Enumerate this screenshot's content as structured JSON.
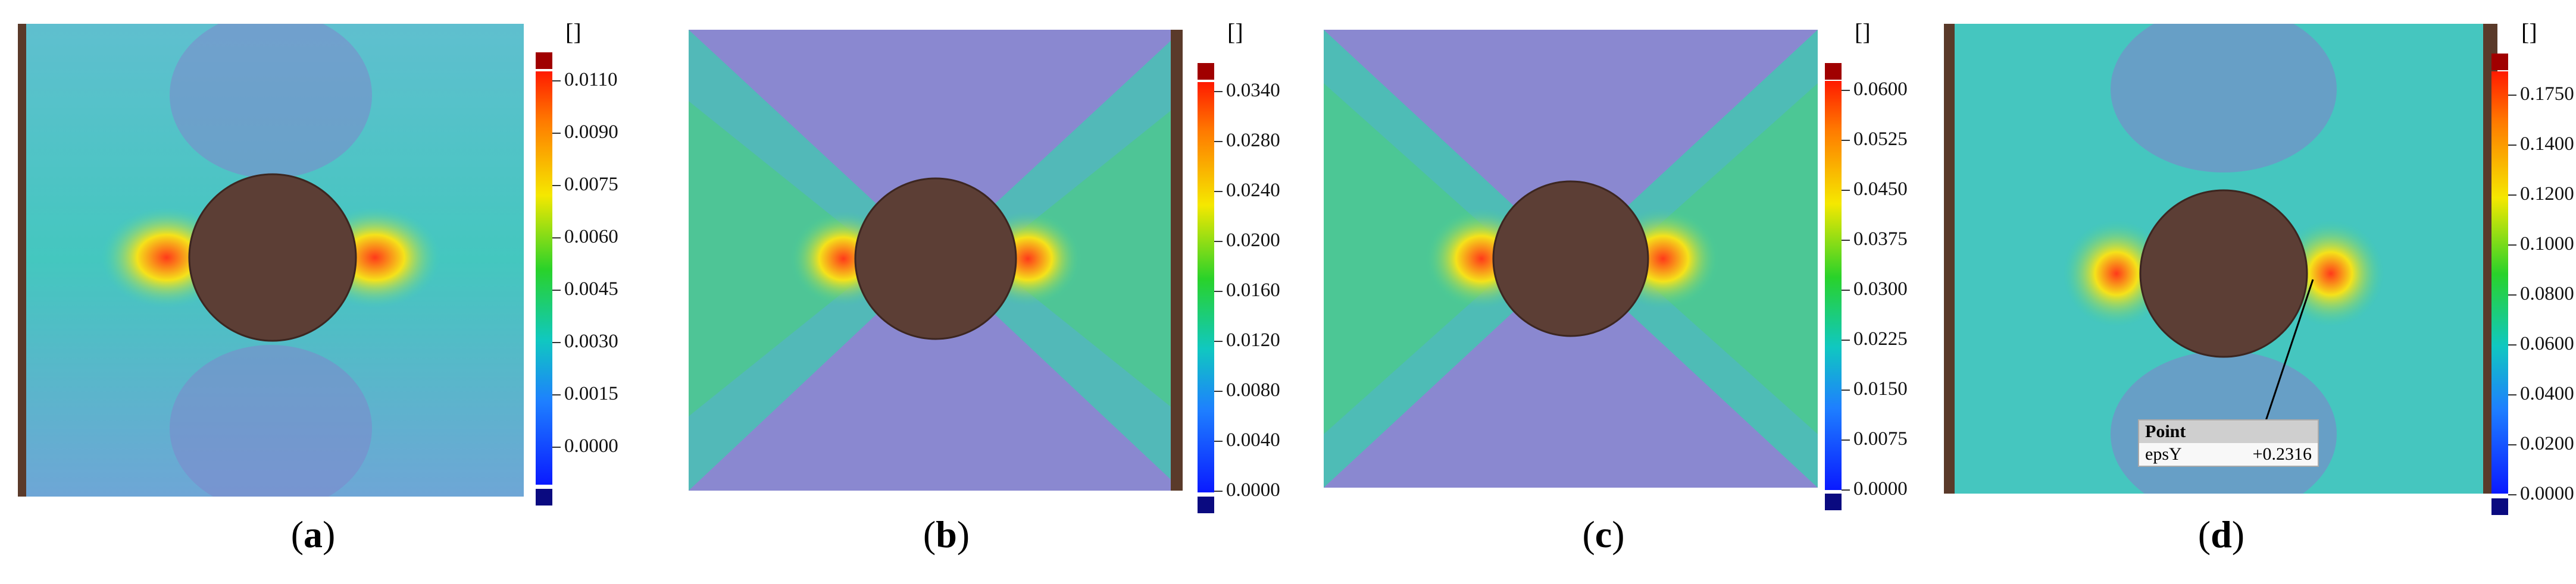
{
  "panels": [
    {
      "caption": "a",
      "unit": "[]",
      "ticks": [
        "0.0110",
        "0.0090",
        "0.0075",
        "0.0060",
        "0.0045",
        "0.0030",
        "0.0015",
        "0.0000"
      ]
    },
    {
      "caption": "b",
      "unit": "[]",
      "ticks": [
        "0.0340",
        "0.0280",
        "0.0240",
        "0.0200",
        "0.0160",
        "0.0120",
        "0.0080",
        "0.0040",
        "0.0000"
      ]
    },
    {
      "caption": "c",
      "unit": "[]",
      "ticks": [
        "0.0600",
        "0.0525",
        "0.0450",
        "0.0375",
        "0.0300",
        "0.0225",
        "0.0150",
        "0.0075",
        "0.0000"
      ]
    },
    {
      "caption": "d",
      "unit": "[]",
      "ticks": [
        "0.1750",
        "0.1400",
        "0.1200",
        "0.1000",
        "0.0800",
        "0.0600",
        "0.0400",
        "0.0200",
        "0.0000"
      ],
      "probe": {
        "title": "Point",
        "label": "epsY",
        "value": "+0.2316"
      }
    }
  ],
  "colors": {
    "background": "#4aa7c8",
    "hole": "#5a3c34",
    "scale_top": "#a00000",
    "scale_bottom": "#0a0a80"
  }
}
